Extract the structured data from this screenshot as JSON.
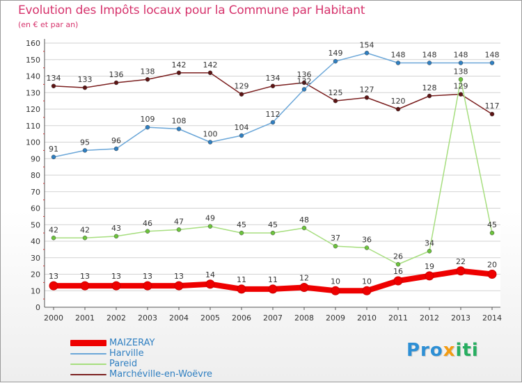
{
  "header": {
    "title": "Evolution des Impôts locaux pour la Commune par Habitant",
    "subtitle": "(en € et par an)"
  },
  "logo": {
    "part1": "Pro",
    "part2": "x",
    "part3": "iti"
  },
  "chart_data": {
    "type": "line",
    "title": "Evolution des Impôts locaux pour la Commune par Habitant",
    "subtitle": "(en € et par an)",
    "xlabel": "",
    "ylabel": "",
    "ylim": [
      0,
      160
    ],
    "yticks": [
      0,
      10,
      20,
      30,
      40,
      50,
      60,
      70,
      80,
      90,
      100,
      110,
      120,
      130,
      140,
      150,
      160
    ],
    "grid": "horizontal",
    "legend_position": "bottom-left",
    "categories": [
      "2000",
      "2001",
      "2002",
      "2003",
      "2004",
      "2005",
      "2006",
      "2007",
      "2008",
      "2009",
      "2010",
      "2011",
      "2012",
      "2013",
      "2014"
    ],
    "series": [
      {
        "name": "Marchéville-en-Woëvre",
        "color": "#7a1e1e",
        "marker": "#5c1414",
        "values": [
          134,
          133,
          136,
          138,
          142,
          142,
          129,
          134,
          136,
          125,
          127,
          120,
          128,
          129,
          117
        ]
      },
      {
        "name": "Harville",
        "color": "#6aa6d8",
        "marker": "#2f7fc1",
        "values": [
          91,
          95,
          96,
          109,
          108,
          100,
          104,
          112,
          132,
          149,
          154,
          148,
          148,
          148,
          148
        ]
      },
      {
        "name": "Pareid",
        "color": "#a6de7e",
        "marker": "#6cc43c",
        "values": [
          42,
          42,
          43,
          46,
          47,
          49,
          45,
          45,
          48,
          37,
          36,
          26,
          34,
          138,
          45
        ]
      },
      {
        "name": "MAIZERAY",
        "color": "#ee0000",
        "marker": "#ee0000",
        "thick": true,
        "values": [
          13,
          13,
          13,
          13,
          13,
          14,
          11,
          11,
          12,
          10,
          10,
          16,
          19,
          22,
          20
        ]
      }
    ],
    "labels": {
      "Marchéville-en-Woëvre": [
        "134",
        "133",
        "136",
        "138",
        "142",
        "142",
        "129",
        "134",
        "136",
        "125",
        "127",
        "120",
        "128",
        "129",
        "117"
      ],
      "Harville": [
        "91",
        "95",
        "96",
        "109",
        "108",
        "100",
        "104",
        "112",
        "132",
        "149",
        "154",
        "148",
        "148",
        "148",
        "148"
      ],
      "Pareid": [
        "42",
        "42",
        "43",
        "46",
        "47",
        "49",
        "45",
        "45",
        "48",
        "37",
        "36",
        "26",
        "34",
        "138",
        "45"
      ],
      "MAIZERAY": [
        "13",
        "13",
        "13",
        "13",
        "13",
        "14",
        "11",
        "11",
        "12",
        "10",
        "10",
        "16",
        "19",
        "22",
        "20"
      ]
    },
    "legend_order": [
      "MAIZERAY",
      "Harville",
      "Pareid",
      "Marchéville-en-Woëvre"
    ]
  }
}
